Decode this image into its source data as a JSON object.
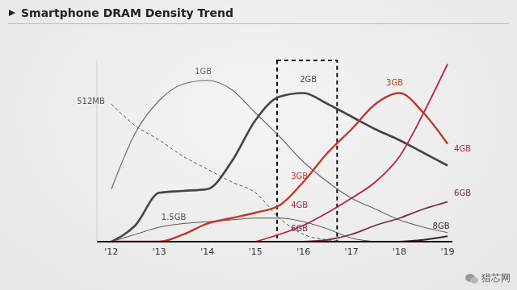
{
  "chart_data": {
    "type": "line",
    "title": "Smartphone DRAM Density Trend",
    "x": [
      2012,
      2012.5,
      2013,
      2013.5,
      2014,
      2014.5,
      2015,
      2015.5,
      2016,
      2016.5,
      2017,
      2017.5,
      2018,
      2018.5,
      2019
    ],
    "xlim": [
      2011.7,
      2019.1
    ],
    "xticks": [
      {
        "value": 2012,
        "label": "'12"
      },
      {
        "value": 2013,
        "label": "'13"
      },
      {
        "value": 2014,
        "label": "'14"
      },
      {
        "value": 2015,
        "label": "'15"
      },
      {
        "value": 2016,
        "label": "'16"
      },
      {
        "value": 2017,
        "label": "'17"
      },
      {
        "value": 2018,
        "label": "'18"
      },
      {
        "value": 2019,
        "label": "'19"
      }
    ],
    "ylim": [
      0,
      100
    ],
    "yticks": [],
    "tick_labels": "x",
    "grid": false,
    "series": [
      {
        "name": "512MB",
        "color": "#555555",
        "line_style": "dashed",
        "values": [
          76,
          64,
          56,
          47,
          40,
          33,
          27,
          13,
          4,
          1,
          0,
          null,
          null,
          null,
          null
        ]
      },
      {
        "name": "1GB",
        "color": "#6a6a6a",
        "line_style": "solid",
        "values": [
          29,
          60,
          78,
          87,
          89,
          84,
          71,
          58,
          44,
          33,
          24,
          18,
          12,
          8,
          5
        ]
      },
      {
        "name": "1.5GB",
        "color": "#555555",
        "line_style": "solid",
        "values": [
          0,
          4,
          8,
          10,
          11,
          12,
          13,
          13,
          11,
          7,
          2,
          0,
          null,
          null,
          null
        ]
      },
      {
        "name": "2GB",
        "color": "#444444",
        "line_style": "solid",
        "values": [
          0,
          9,
          27,
          28,
          29,
          44,
          67,
          80,
          82,
          76,
          69,
          62,
          56,
          49,
          42
        ]
      },
      {
        "name": "3GB",
        "color": "#c0392b",
        "line_style": "solid",
        "values": [
          0,
          0,
          0,
          4,
          10,
          13,
          16,
          20,
          33,
          49,
          62,
          76,
          82,
          71,
          54
        ]
      },
      {
        "name": "4GB",
        "color": "#b3283c",
        "line_style": "solid",
        "values": [
          null,
          null,
          null,
          null,
          null,
          null,
          0,
          4,
          9,
          16,
          24,
          33,
          47,
          71,
          98
        ]
      },
      {
        "name": "6GB",
        "color": "#7b2d3a",
        "line_style": "solid",
        "values": [
          null,
          null,
          null,
          null,
          null,
          null,
          null,
          null,
          0,
          1,
          4,
          9,
          13,
          18,
          22
        ]
      },
      {
        "name": "8GB",
        "color": "#3b1f28",
        "line_style": "solid",
        "values": [
          null,
          null,
          null,
          null,
          null,
          null,
          null,
          null,
          null,
          null,
          null,
          null,
          0,
          1,
          3
        ]
      }
    ],
    "annotations": [
      {
        "type": "box",
        "x1": 2015.45,
        "x2": 2016.7
      }
    ],
    "watermark": "猎芯网"
  }
}
